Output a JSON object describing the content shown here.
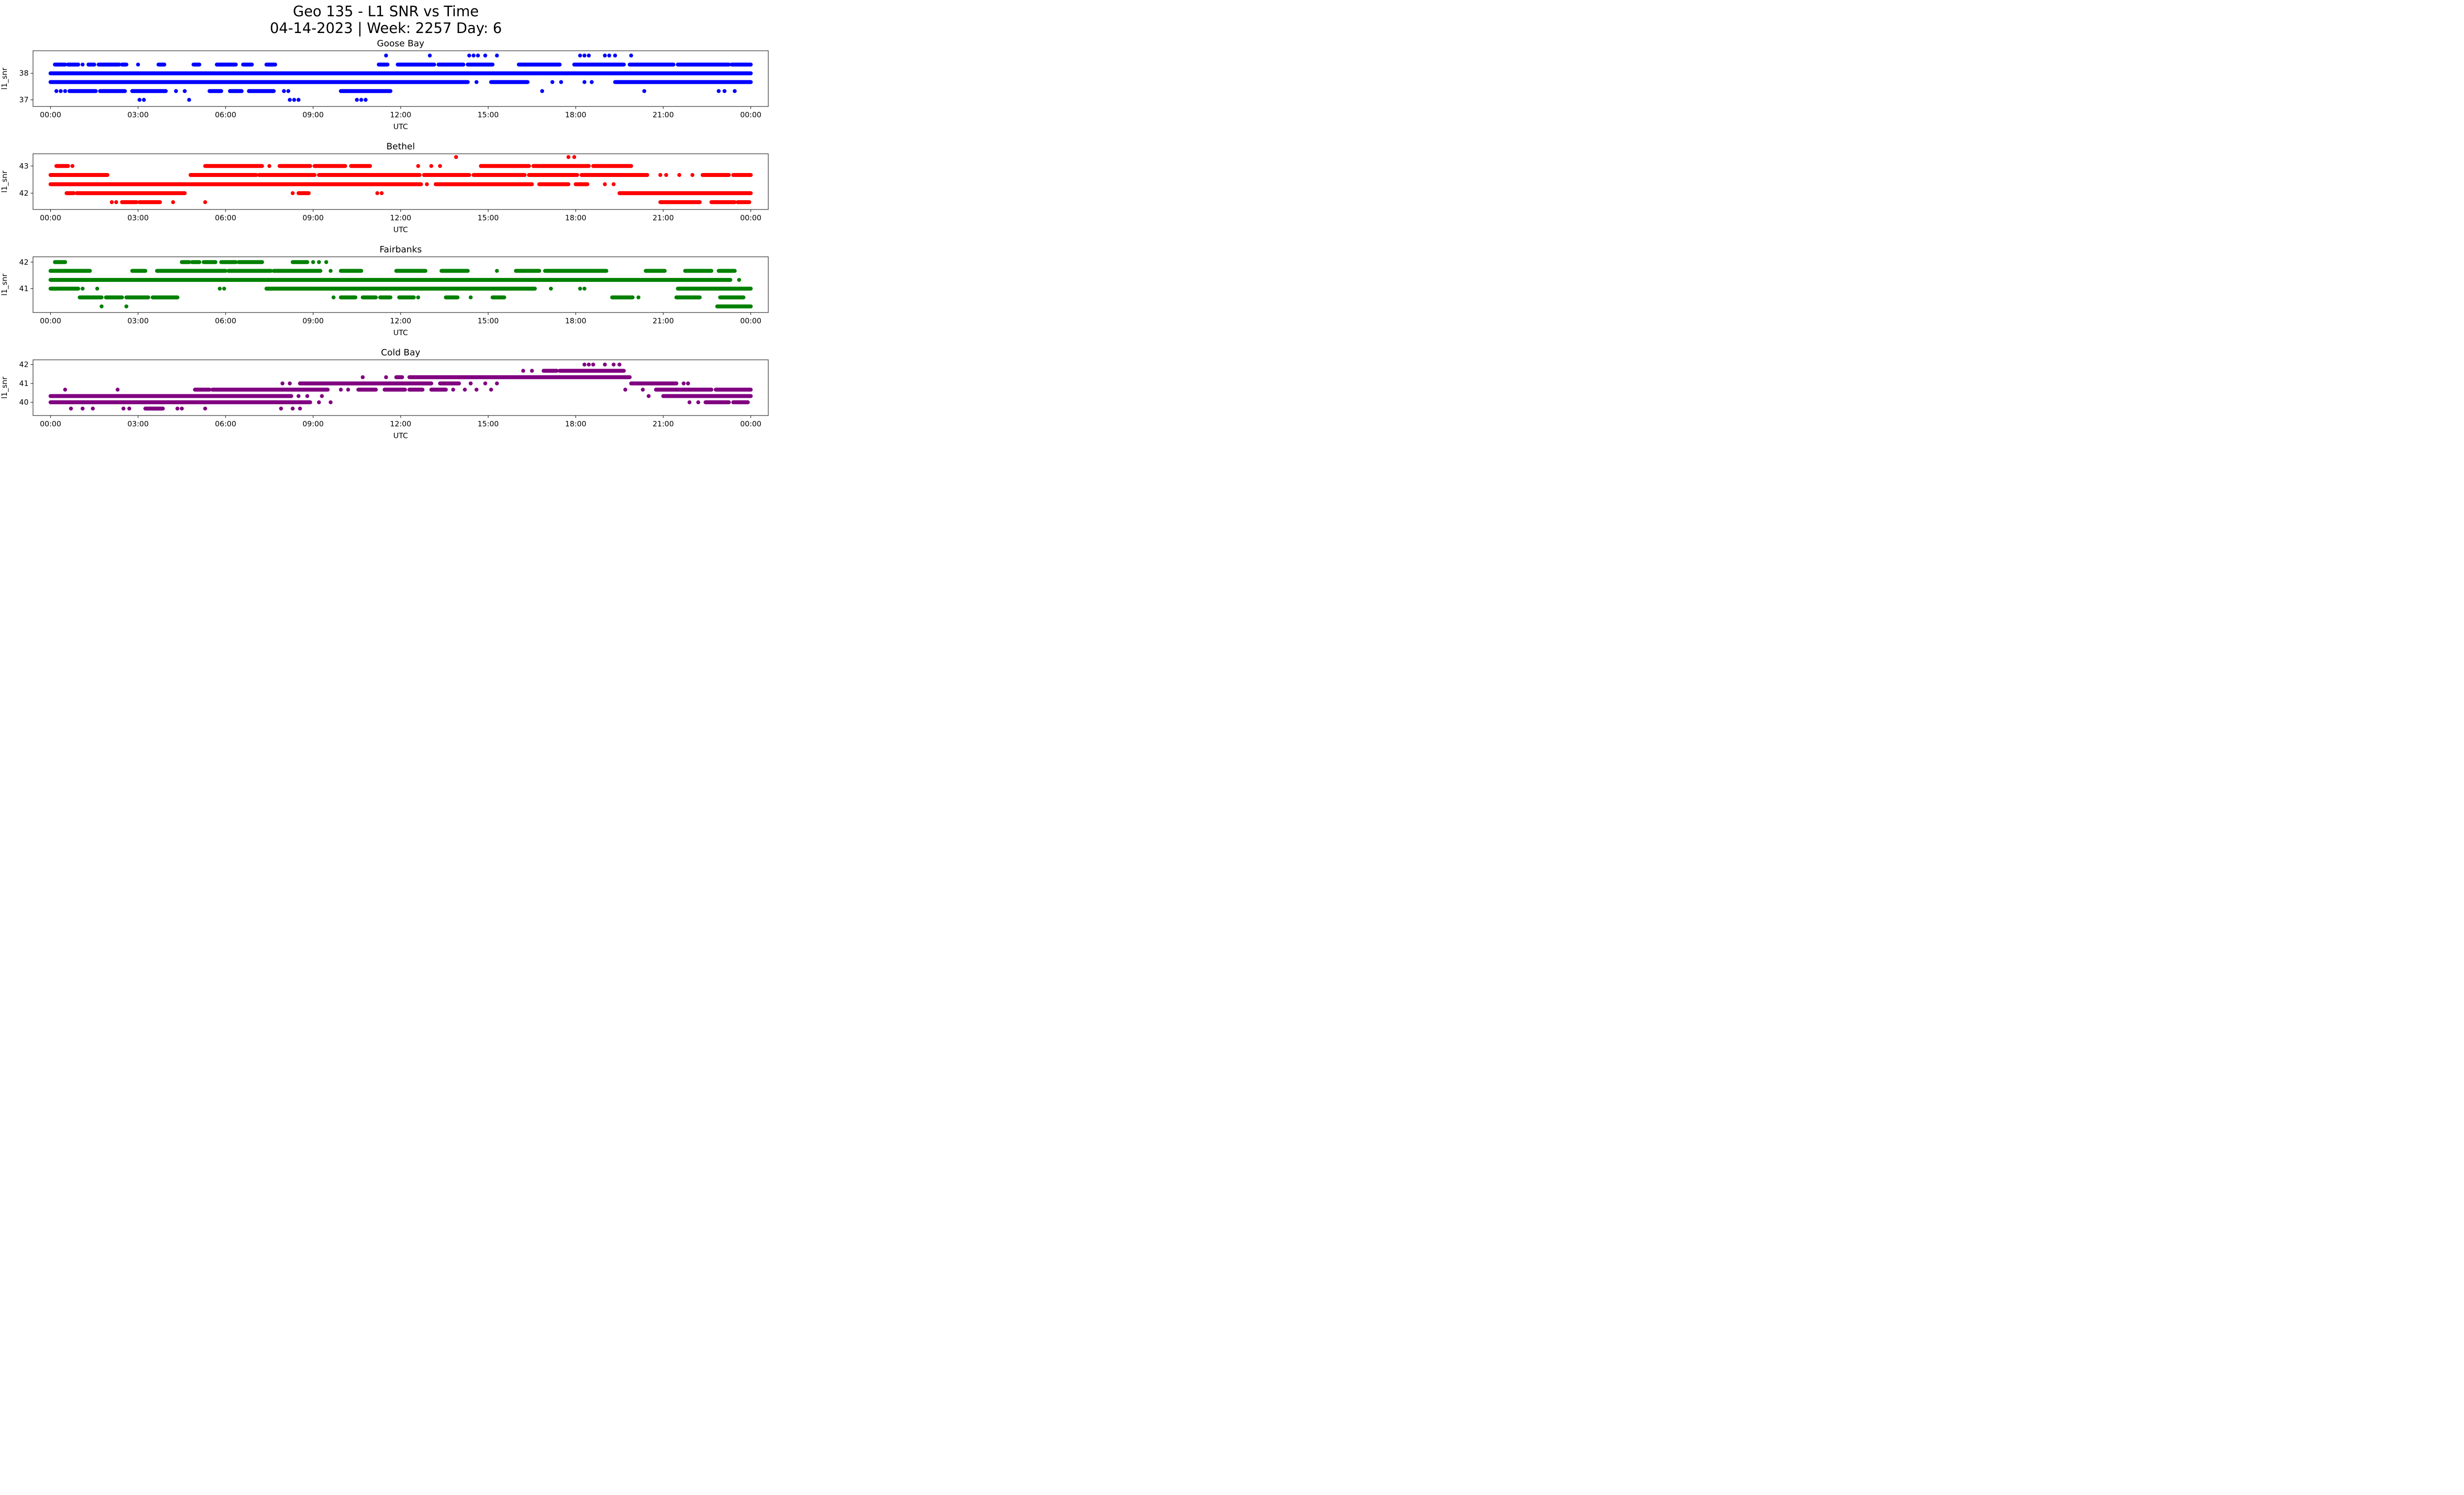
{
  "figure": {
    "title_line1": "Geo 135 - L1 SNR vs Time",
    "title_line2": "04-14-2023 | Week: 2257 Day: 6"
  },
  "chart_data": [
    {
      "type": "scatter",
      "title": "Goose Bay",
      "color": "#0000ff",
      "xlabel": "UTC",
      "ylabel": "l1_snr",
      "xlim": [
        -0.6,
        24.6
      ],
      "ylim": [
        36.75,
        38.85
      ],
      "xticks": [
        0,
        3,
        6,
        9,
        12,
        15,
        18,
        21,
        24
      ],
      "xtick_labels": [
        "00:00",
        "03:00",
        "06:00",
        "09:00",
        "12:00",
        "15:00",
        "18:00",
        "21:00",
        "00:00"
      ],
      "yticks": [
        37,
        38
      ],
      "levels": [
        {
          "y": 38.67,
          "segments": [],
          "points": [
            11.5,
            13.0,
            14.35,
            14.5,
            14.65,
            14.9,
            15.3,
            18.15,
            18.3,
            18.45,
            19.0,
            19.15,
            19.35,
            19.9
          ]
        },
        {
          "y": 38.33,
          "segments": [
            [
              0.15,
              0.5
            ],
            [
              0.6,
              0.95
            ],
            [
              1.3,
              1.5
            ],
            [
              1.65,
              2.35
            ],
            [
              2.45,
              2.6
            ],
            [
              3.7,
              3.9
            ],
            [
              4.9,
              5.1
            ],
            [
              5.7,
              6.35
            ],
            [
              6.6,
              6.9
            ],
            [
              7.4,
              7.7
            ],
            [
              11.25,
              11.55
            ],
            [
              11.9,
              13.15
            ],
            [
              13.3,
              14.15
            ],
            [
              14.3,
              15.15
            ],
            [
              16.05,
              17.45
            ],
            [
              17.95,
              19.65
            ],
            [
              19.85,
              21.35
            ],
            [
              21.5,
              23.25
            ],
            [
              23.35,
              24.0
            ]
          ],
          "points": [
            1.1,
            3.0
          ]
        },
        {
          "y": 38.0,
          "segments": [
            [
              0.0,
              24.0
            ]
          ],
          "points": []
        },
        {
          "y": 37.67,
          "segments": [
            [
              0.0,
              14.3
            ],
            [
              15.1,
              16.35
            ],
            [
              19.35,
              24.0
            ]
          ],
          "points": [
            14.6,
            17.2,
            17.5,
            18.3,
            18.55
          ]
        },
        {
          "y": 37.33,
          "segments": [
            [
              0.65,
              1.55
            ],
            [
              1.7,
              2.55
            ],
            [
              2.8,
              3.95
            ],
            [
              5.45,
              5.85
            ],
            [
              6.15,
              6.55
            ],
            [
              6.8,
              7.65
            ],
            [
              9.95,
              11.65
            ]
          ],
          "points": [
            0.2,
            0.35,
            0.5,
            4.3,
            4.6,
            8.0,
            8.15,
            16.85,
            20.35,
            22.9,
            23.1,
            23.45
          ]
        },
        {
          "y": 37.0,
          "segments": [],
          "points": [
            3.05,
            3.2,
            4.75,
            8.2,
            8.35,
            8.5,
            10.5,
            10.65,
            10.8
          ]
        }
      ]
    },
    {
      "type": "scatter",
      "title": "Bethel",
      "color": "#ff0000",
      "xlabel": "UTC",
      "ylabel": "l1_snr",
      "xlim": [
        -0.6,
        24.6
      ],
      "ylim": [
        41.4,
        43.45
      ],
      "xticks": [
        0,
        3,
        6,
        9,
        12,
        15,
        18,
        21,
        24
      ],
      "xtick_labels": [
        "00:00",
        "03:00",
        "06:00",
        "09:00",
        "12:00",
        "15:00",
        "18:00",
        "21:00",
        "00:00"
      ],
      "yticks": [
        42,
        43
      ],
      "levels": [
        {
          "y": 43.33,
          "segments": [],
          "points": [
            13.9,
            17.75,
            17.95
          ]
        },
        {
          "y": 43.0,
          "segments": [
            [
              0.2,
              0.6
            ],
            [
              5.3,
              7.25
            ],
            [
              7.85,
              8.9
            ],
            [
              9.05,
              10.1
            ],
            [
              10.3,
              10.95
            ],
            [
              14.75,
              16.4
            ],
            [
              16.55,
              18.45
            ],
            [
              18.6,
              19.9
            ]
          ],
          "points": [
            0.75,
            7.5,
            12.6,
            13.05,
            13.35
          ]
        },
        {
          "y": 42.67,
          "segments": [
            [
              0.0,
              1.95
            ],
            [
              4.8,
              7.05
            ],
            [
              7.15,
              9.05
            ],
            [
              9.2,
              12.65
            ],
            [
              12.8,
              14.35
            ],
            [
              14.5,
              16.25
            ],
            [
              16.4,
              18.05
            ],
            [
              18.2,
              20.45
            ],
            [
              22.35,
              23.25
            ],
            [
              23.4,
              24.0
            ]
          ],
          "points": [
            20.9,
            21.1,
            21.55,
            22.0
          ]
        },
        {
          "y": 42.33,
          "segments": [
            [
              0.0,
              12.7
            ],
            [
              13.2,
              16.5
            ],
            [
              16.75,
              17.75
            ],
            [
              18.0,
              18.4
            ]
          ],
          "points": [
            12.9,
            19.0,
            19.3
          ]
        },
        {
          "y": 42.0,
          "segments": [
            [
              0.55,
              0.8
            ],
            [
              0.9,
              4.6
            ],
            [
              8.5,
              8.85
            ],
            [
              19.5,
              24.0
            ]
          ],
          "points": [
            8.3,
            11.2,
            11.35
          ]
        },
        {
          "y": 41.67,
          "segments": [
            [
              2.45,
              2.95
            ],
            [
              3.05,
              3.75
            ],
            [
              20.9,
              22.25
            ],
            [
              22.65,
              23.45
            ],
            [
              23.55,
              23.95
            ]
          ],
          "points": [
            2.1,
            2.25,
            4.2,
            5.3
          ]
        }
      ]
    },
    {
      "type": "scatter",
      "title": "Fairbanks",
      "color": "#008000",
      "xlabel": "UTC",
      "ylabel": "l1_snr",
      "xlim": [
        -0.6,
        24.6
      ],
      "ylim": [
        40.1,
        42.2
      ],
      "xticks": [
        0,
        3,
        6,
        9,
        12,
        15,
        18,
        21,
        24
      ],
      "xtick_labels": [
        "00:00",
        "03:00",
        "06:00",
        "09:00",
        "12:00",
        "15:00",
        "18:00",
        "21:00",
        "00:00"
      ],
      "yticks": [
        41,
        42
      ],
      "levels": [
        {
          "y": 42.0,
          "segments": [
            [
              0.15,
              0.5
            ],
            [
              4.5,
              4.75
            ],
            [
              4.85,
              5.1
            ],
            [
              5.25,
              5.65
            ],
            [
              5.85,
              6.35
            ],
            [
              6.45,
              7.25
            ],
            [
              8.3,
              8.8
            ]
          ],
          "points": [
            9.0,
            9.2,
            9.45
          ]
        },
        {
          "y": 41.67,
          "segments": [
            [
              0.0,
              1.35
            ],
            [
              2.8,
              3.25
            ],
            [
              3.65,
              6.0
            ],
            [
              6.1,
              7.55
            ],
            [
              7.65,
              9.25
            ],
            [
              9.95,
              10.65
            ],
            [
              11.85,
              12.85
            ],
            [
              13.4,
              14.3
            ],
            [
              15.95,
              16.75
            ],
            [
              16.95,
              19.05
            ],
            [
              20.4,
              21.05
            ],
            [
              21.75,
              22.65
            ],
            [
              22.9,
              23.45
            ]
          ],
          "points": [
            9.6,
            15.3
          ]
        },
        {
          "y": 41.33,
          "segments": [
            [
              0.0,
              23.3
            ]
          ],
          "points": [
            23.6
          ]
        },
        {
          "y": 41.0,
          "segments": [
            [
              0.0,
              0.95
            ],
            [
              7.4,
              16.6
            ],
            [
              21.5,
              24.0
            ]
          ],
          "points": [
            1.1,
            1.6,
            5.8,
            5.95,
            17.15,
            18.15,
            18.3
          ]
        },
        {
          "y": 40.67,
          "segments": [
            [
              1.0,
              1.75
            ],
            [
              1.9,
              2.45
            ],
            [
              2.6,
              3.35
            ],
            [
              3.5,
              4.35
            ],
            [
              9.95,
              10.45
            ],
            [
              10.7,
              11.15
            ],
            [
              11.3,
              11.65
            ],
            [
              11.95,
              12.45
            ],
            [
              13.55,
              13.95
            ],
            [
              15.15,
              15.55
            ],
            [
              19.25,
              19.95
            ],
            [
              21.45,
              22.25
            ],
            [
              22.95,
              23.75
            ]
          ],
          "points": [
            9.7,
            12.6,
            14.4,
            20.15
          ]
        },
        {
          "y": 40.33,
          "segments": [
            [
              22.85,
              24.0
            ]
          ],
          "points": [
            1.75,
            2.6
          ]
        }
      ]
    },
    {
      "type": "scatter",
      "title": "Cold Bay",
      "color": "#800080",
      "xlabel": "UTC",
      "ylabel": "l1_snr",
      "xlim": [
        -0.6,
        24.6
      ],
      "ylim": [
        39.3,
        42.25
      ],
      "xticks": [
        0,
        3,
        6,
        9,
        12,
        15,
        18,
        21,
        24
      ],
      "xtick_labels": [
        "00:00",
        "03:00",
        "06:00",
        "09:00",
        "12:00",
        "15:00",
        "18:00",
        "21:00",
        "00:00"
      ],
      "yticks": [
        40,
        41,
        42
      ],
      "levels": [
        {
          "y": 42.0,
          "segments": [],
          "points": [
            18.3,
            18.45,
            18.6,
            19.0,
            19.3,
            19.5
          ]
        },
        {
          "y": 41.67,
          "segments": [
            [
              16.9,
              17.35
            ],
            [
              17.45,
              19.65
            ]
          ],
          "points": [
            16.2,
            16.5
          ]
        },
        {
          "y": 41.33,
          "segments": [
            [
              11.85,
              12.05
            ],
            [
              12.3,
              19.85
            ]
          ],
          "points": [
            10.7,
            11.5
          ]
        },
        {
          "y": 41.0,
          "segments": [
            [
              8.55,
              13.05
            ],
            [
              13.35,
              14.0
            ],
            [
              19.9,
              21.45
            ]
          ],
          "points": [
            7.95,
            8.2,
            14.4,
            14.9,
            15.3,
            21.7,
            21.85
          ]
        },
        {
          "y": 40.67,
          "segments": [
            [
              4.95,
              5.45
            ],
            [
              5.55,
              9.5
            ],
            [
              10.55,
              11.15
            ],
            [
              11.45,
              12.15
            ],
            [
              12.3,
              12.75
            ],
            [
              13.05,
              13.55
            ],
            [
              20.75,
              22.65
            ],
            [
              22.8,
              24.0
            ]
          ],
          "points": [
            0.5,
            2.3,
            9.95,
            10.2,
            13.8,
            14.2,
            14.6,
            15.1,
            19.7,
            20.3
          ]
        },
        {
          "y": 40.33,
          "segments": [
            [
              0.0,
              8.25
            ],
            [
              21.0,
              24.0
            ]
          ],
          "points": [
            8.5,
            8.8,
            9.3,
            20.5
          ]
        },
        {
          "y": 40.0,
          "segments": [
            [
              0.0,
              8.9
            ],
            [
              22.45,
              23.25
            ],
            [
              23.4,
              23.9
            ]
          ],
          "points": [
            9.2,
            9.6,
            21.9,
            22.2
          ]
        },
        {
          "y": 39.67,
          "segments": [
            [
              3.25,
              3.85
            ]
          ],
          "points": [
            0.7,
            1.1,
            1.45,
            2.5,
            2.7,
            4.35,
            4.5,
            5.3,
            7.9,
            8.3,
            8.55
          ]
        }
      ]
    }
  ]
}
